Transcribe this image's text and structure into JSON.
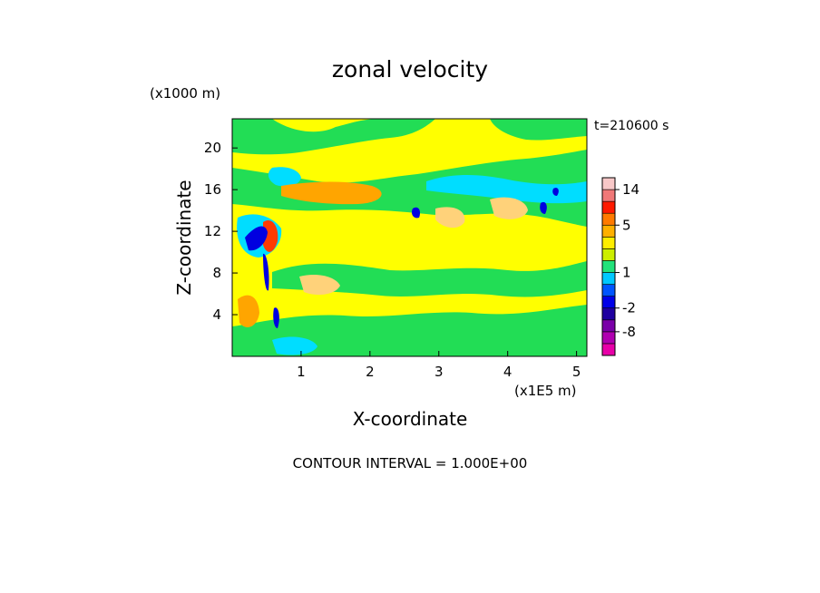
{
  "chart_data": {
    "type": "heatmap",
    "title": "zonal velocity",
    "xlabel": "X-coordinate",
    "ylabel": "Z-coordinate",
    "x_unit": "(x1E5 m)",
    "y_unit": "(x1000 m)",
    "time_label": "t=210600 s",
    "footer": "CONTOUR INTERVAL = 1.000E+00",
    "xlim": [
      0,
      5.15
    ],
    "ylim": [
      0,
      22.8
    ],
    "x_ticks": [
      "1",
      "2",
      "3",
      "4",
      "5"
    ],
    "x_tick_values": [
      1,
      2,
      3,
      4,
      5
    ],
    "y_ticks": [
      "4",
      "8",
      "12",
      "16",
      "20"
    ],
    "y_tick_values": [
      4,
      8,
      12,
      16,
      20
    ],
    "colorbar": {
      "levels": [
        -14,
        -11,
        -8,
        -5,
        -2,
        -1,
        0,
        1,
        2,
        3,
        4,
        5,
        8,
        11,
        14,
        17
      ],
      "colors": [
        "#e800a8",
        "#b000b0",
        "#7a00a8",
        "#1f00a0",
        "#0000e8",
        "#0055ff",
        "#00c8ff",
        "#22e27a",
        "#ccee00",
        "#ffee00",
        "#ffb000",
        "#ff7a00",
        "#ff1a00",
        "#f07878",
        "#f8c8c8"
      ],
      "labels": [
        "14",
        "5",
        "1",
        "-2",
        "-8"
      ],
      "label_values": [
        14,
        5,
        1,
        -2,
        -8
      ]
    },
    "field_note_colors": {
      "yellow": "#ffff00",
      "green": "#22dd55",
      "cyan": "#00ddff",
      "blue": "#0000e0",
      "orange": "#ffa500",
      "light_orange": "#ffd27a",
      "red": "#ff3a00"
    }
  }
}
